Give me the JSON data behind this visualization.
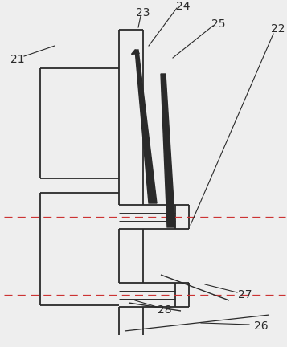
{
  "bg_color": "#eeeeee",
  "line_color": "#2a2a2a",
  "dash_color": "#cc3333",
  "lw": 1.3,
  "label_fontsize": 10,
  "figsize": [
    3.57,
    4.32
  ],
  "dpi": 100
}
